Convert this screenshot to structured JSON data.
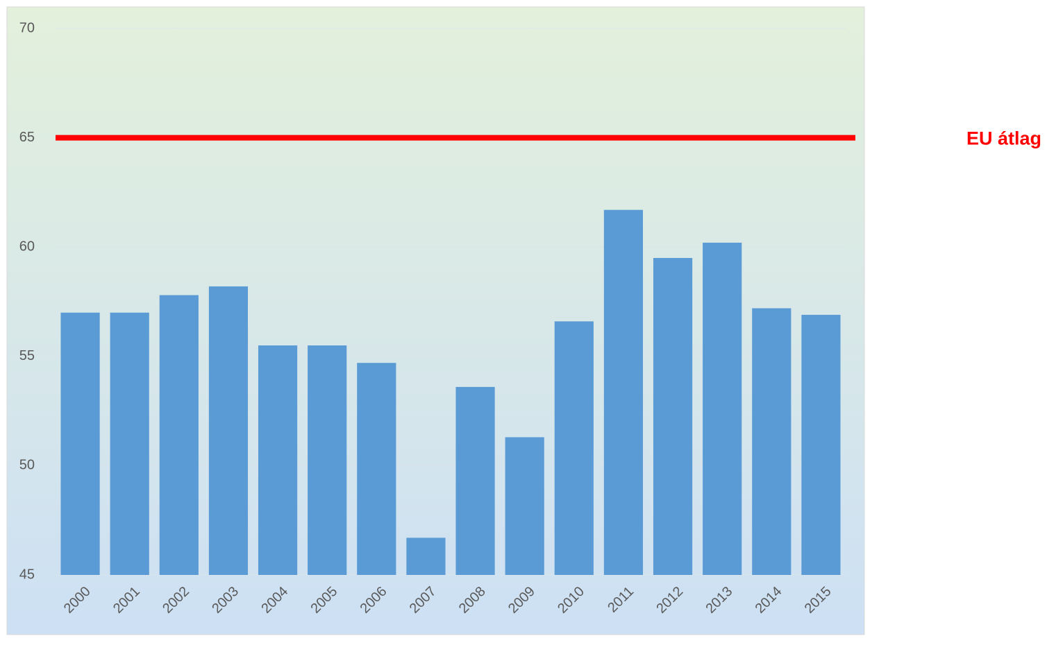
{
  "chart_data": {
    "type": "bar",
    "categories": [
      "2000",
      "2001",
      "2002",
      "2003",
      "2004",
      "2005",
      "2006",
      "2007",
      "2008",
      "2009",
      "2010",
      "2011",
      "2012",
      "2013",
      "2014",
      "2015"
    ],
    "values": [
      57.0,
      57.0,
      57.8,
      58.2,
      55.5,
      55.5,
      54.7,
      46.7,
      53.6,
      51.3,
      56.6,
      61.7,
      59.5,
      60.2,
      57.2,
      56.9
    ],
    "color": "#5b9bd5",
    "ylim": [
      45,
      70
    ],
    "yticks": [
      45,
      50,
      55,
      60,
      65,
      70
    ],
    "grid": true,
    "reference": {
      "value": 65,
      "label": "EU átlag",
      "color": "#ff0000"
    }
  }
}
